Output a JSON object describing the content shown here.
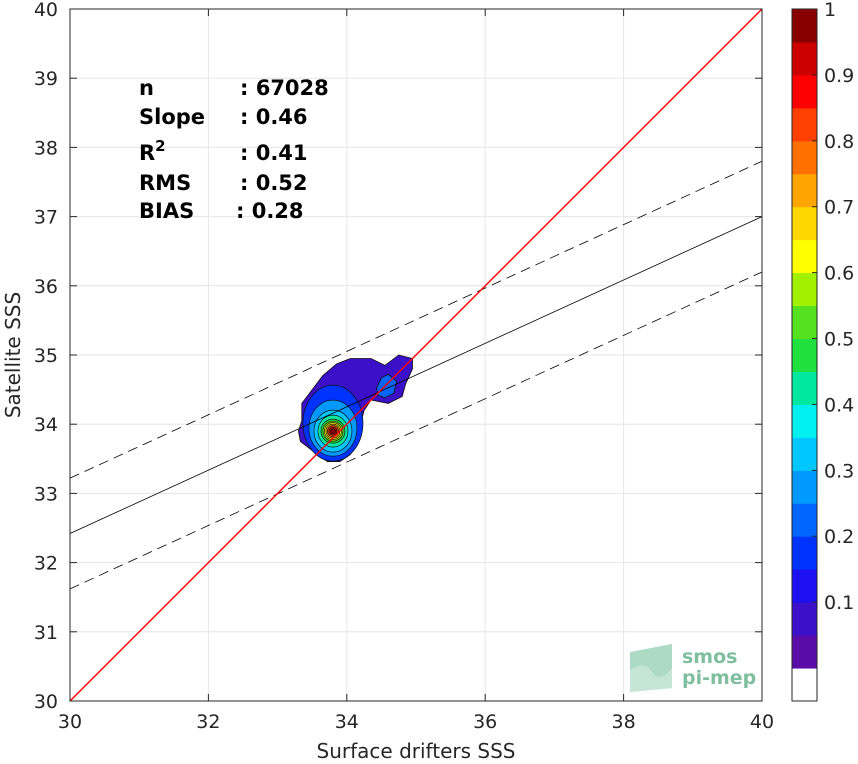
{
  "chart_data": {
    "type": "scatter",
    "xlabel": "Surface drifters SSS",
    "ylabel": "Satellite SSS",
    "xlim": [
      30,
      40
    ],
    "ylim": [
      30,
      40
    ],
    "x_ticks": [
      "30",
      "32",
      "34",
      "36",
      "38",
      "40"
    ],
    "y_ticks": [
      "30",
      "31",
      "32",
      "33",
      "34",
      "35",
      "36",
      "37",
      "38",
      "39",
      "40"
    ],
    "grid": true,
    "stats": [
      {
        "label": "n",
        "value": ": 67028"
      },
      {
        "label": "Slope",
        "value": ": 0.46"
      },
      {
        "label": "R",
        "sup": "2",
        "value": ": 0.41"
      },
      {
        "label": "RMS",
        "value": ": 0.52"
      },
      {
        "label": "BIAS",
        "value": ": 0.28"
      }
    ],
    "identity_line": {
      "x": [
        30,
        40
      ],
      "y": [
        30,
        40
      ],
      "color": "#ff0000"
    },
    "fit_line": {
      "x": [
        30,
        40
      ],
      "y": [
        32.42,
        37.0
      ]
    },
    "fit_offset_rms": 0.8,
    "density_peak": {
      "x": 33.8,
      "y": 33.9
    },
    "colorbar": {
      "ticks": [
        "0.1",
        "0.2",
        "0.3",
        "0.4",
        "0.5",
        "0.6",
        "0.7",
        "0.8",
        "0.9",
        "1"
      ],
      "levels": 20,
      "colors": [
        "#ffffff",
        "#5a0ca8",
        "#3c10c8",
        "#1c0ff0",
        "#0033ff",
        "#0066ff",
        "#0099ff",
        "#00c8ff",
        "#00f0f0",
        "#00e8a0",
        "#20e040",
        "#55e020",
        "#a0f000",
        "#ffff00",
        "#ffd700",
        "#ffa500",
        "#ff7000",
        "#ff4000",
        "#ff0000",
        "#cc0000",
        "#880000"
      ]
    }
  },
  "logo": {
    "line1": "smos",
    "line2": "pi-mep"
  }
}
